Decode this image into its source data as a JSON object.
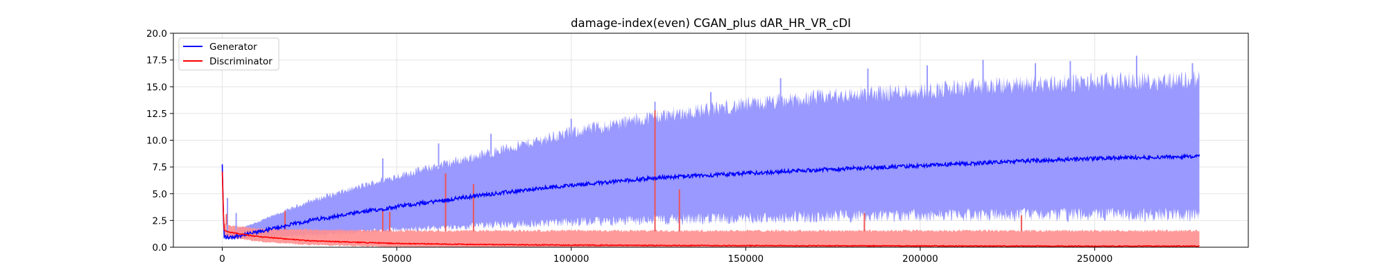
{
  "chart_data": {
    "type": "line",
    "title": "damage-index(even)   CGAN_plus    dAR_HR_VR_cDI",
    "xlabel": "",
    "ylabel": "",
    "xlim": [
      -14000,
      294000
    ],
    "ylim": [
      0,
      20
    ],
    "grid": true,
    "legend_placement": "top-left",
    "x_ticks": [
      0,
      50000,
      100000,
      150000,
      200000,
      250000
    ],
    "x_tick_labels": [
      "0",
      "50000",
      "100000",
      "150000",
      "200000",
      "250000"
    ],
    "y_ticks": [
      0,
      2.5,
      5,
      7.5,
      10,
      12.5,
      15,
      17.5,
      20
    ],
    "y_tick_labels": [
      "0.0",
      "2.5",
      "5.0",
      "7.5",
      "10.0",
      "12.5",
      "15.0",
      "17.5",
      "20.0"
    ],
    "series": [
      {
        "name": "Generator",
        "color": "#0000ff",
        "band_color": "#9999ff",
        "x": [
          0,
          500,
          2000,
          10000,
          25000,
          50000,
          75000,
          100000,
          125000,
          150000,
          175000,
          200000,
          225000,
          250000,
          280000
        ],
        "mean": [
          7.7,
          1.0,
          0.9,
          1.4,
          2.5,
          3.8,
          4.9,
          5.8,
          6.5,
          6.9,
          7.3,
          7.6,
          8.0,
          8.3,
          8.5
        ],
        "band_low": [
          6.5,
          0.8,
          0.8,
          1.0,
          1.3,
          1.9,
          2.4,
          2.8,
          3.1,
          3.3,
          3.5,
          3.6,
          3.7,
          3.7,
          3.7
        ],
        "band_high": [
          7.9,
          1.3,
          1.4,
          2.3,
          4.2,
          6.5,
          8.5,
          10.5,
          12.0,
          13.0,
          13.8,
          14.3,
          14.8,
          15.1,
          15.3
        ],
        "spikes": [
          {
            "x": 1500,
            "y": 4.6
          },
          {
            "x": 4000,
            "y": 3.2
          },
          {
            "x": 30000,
            "y": 5.0
          },
          {
            "x": 46000,
            "y": 8.3
          },
          {
            "x": 62000,
            "y": 9.7
          },
          {
            "x": 77000,
            "y": 10.6
          },
          {
            "x": 100000,
            "y": 12.0
          },
          {
            "x": 124000,
            "y": 13.6
          },
          {
            "x": 140000,
            "y": 14.5
          },
          {
            "x": 160000,
            "y": 15.8
          },
          {
            "x": 185000,
            "y": 16.7
          },
          {
            "x": 202000,
            "y": 17.0
          },
          {
            "x": 218000,
            "y": 17.5
          },
          {
            "x": 233000,
            "y": 17.2
          },
          {
            "x": 243000,
            "y": 17.4
          },
          {
            "x": 262000,
            "y": 17.9
          },
          {
            "x": 278000,
            "y": 17.2
          }
        ]
      },
      {
        "name": "Discriminator",
        "color": "#ff0000",
        "band_color": "#ff8f8f",
        "x": [
          0,
          500,
          2000,
          10000,
          25000,
          50000,
          75000,
          100000,
          125000,
          150000,
          200000,
          250000,
          280000
        ],
        "mean": [
          7.1,
          1.6,
          1.4,
          1.0,
          0.6,
          0.35,
          0.25,
          0.2,
          0.17,
          0.15,
          0.12,
          0.1,
          0.1
        ],
        "band_low": [
          6.0,
          1.2,
          1.0,
          0.6,
          0.3,
          0.1,
          0.05,
          0.03,
          0.02,
          0.02,
          0.02,
          0.02,
          0.02
        ],
        "band_high": [
          7.6,
          2.2,
          2.0,
          1.7,
          1.6,
          1.5,
          1.5,
          1.5,
          1.5,
          1.5,
          1.5,
          1.5,
          1.5
        ],
        "spikes": [
          {
            "x": 1200,
            "y": 3.1
          },
          {
            "x": 18000,
            "y": 3.4
          },
          {
            "x": 46000,
            "y": 3.6
          },
          {
            "x": 48000,
            "y": 3.3
          },
          {
            "x": 64000,
            "y": 6.9
          },
          {
            "x": 72000,
            "y": 5.9
          },
          {
            "x": 124000,
            "y": 12.8
          },
          {
            "x": 131000,
            "y": 5.4
          },
          {
            "x": 184000,
            "y": 3.2
          },
          {
            "x": 229000,
            "y": 3.0
          }
        ]
      }
    ]
  }
}
